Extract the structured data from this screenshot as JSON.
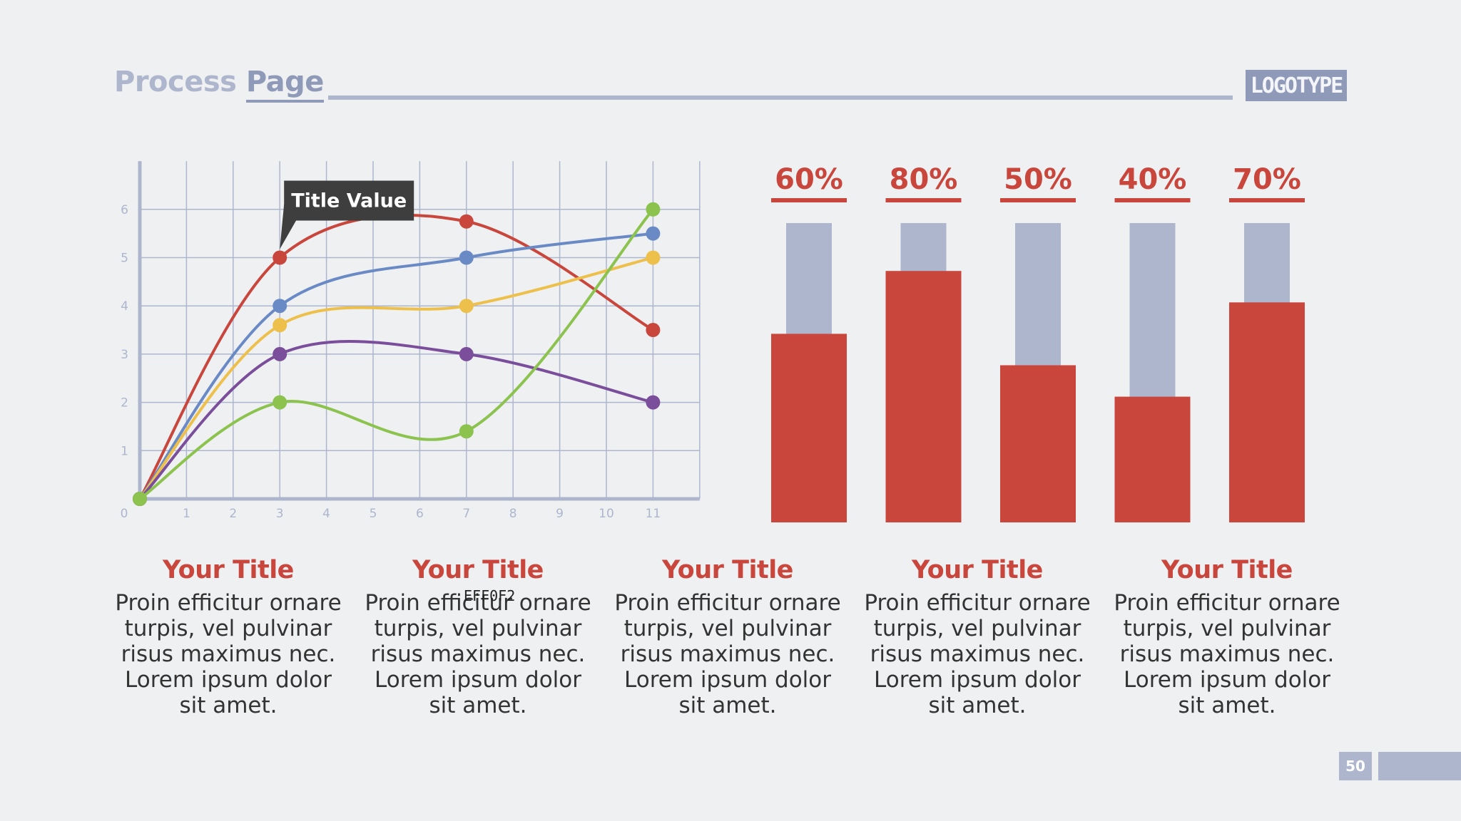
{
  "header": {
    "title_light": "Process",
    "title_strong": "Page",
    "logo": "LOGOTYPE"
  },
  "colors": {
    "accent": "#C9463D",
    "muted": "#AEB6CE",
    "background": "#EFF0F2",
    "grid": "#AEB6CE",
    "series": [
      "#C9463D",
      "#6A8AC6",
      "#EDC04C",
      "#7A4E9A",
      "#8CC24E"
    ]
  },
  "chart_data": [
    {
      "type": "line",
      "xlim": [
        0,
        12
      ],
      "ylim": [
        0,
        7
      ],
      "x_ticks": [
        0,
        1,
        2,
        3,
        4,
        5,
        6,
        7,
        8,
        9,
        10,
        11
      ],
      "y_ticks": [
        1,
        2,
        3,
        4,
        5,
        6
      ],
      "grid": true,
      "series": [
        {
          "color": "#C9463D",
          "x": [
            0,
            3,
            7,
            11
          ],
          "y": [
            0,
            5,
            5.75,
            3.5
          ]
        },
        {
          "color": "#6A8AC6",
          "x": [
            0,
            3,
            7,
            11
          ],
          "y": [
            0,
            4,
            5,
            5.5
          ]
        },
        {
          "color": "#EDC04C",
          "x": [
            0,
            3,
            7,
            11
          ],
          "y": [
            0,
            3.6,
            4,
            5
          ]
        },
        {
          "color": "#7A4E9A",
          "x": [
            0,
            3,
            7,
            11
          ],
          "y": [
            0,
            3,
            3,
            2
          ]
        },
        {
          "color": "#8CC24E",
          "x": [
            0,
            3,
            7,
            11
          ],
          "y": [
            0,
            2,
            1.4,
            6
          ]
        }
      ],
      "annotation": {
        "text": "Title Value",
        "x": 3,
        "y": 5
      }
    },
    {
      "type": "bar",
      "values": [
        60,
        80,
        50,
        40,
        70
      ],
      "labels": [
        "60%",
        "80%",
        "50%",
        "40%",
        "70%"
      ],
      "ylim": [
        0,
        100
      ]
    }
  ],
  "cards": [
    {
      "title": "Your Title",
      "text": "Proin efficitur ornare turpis, vel pulvinar risus maximus nec. Lorem ipsum dolor sit amet."
    },
    {
      "title": "Your Title",
      "text": "Proin efficitur ornare turpis, vel pulvinar risus maximus nec. Lorem ipsum dolor sit amet."
    },
    {
      "title": "Your Title",
      "text": "Proin efficitur ornare turpis, vel pulvinar risus maximus nec. Lorem ipsum dolor sit amet."
    },
    {
      "title": "Your Title",
      "text": "Proin efficitur ornare turpis, vel pulvinar risus maximus nec. Lorem ipsum dolor sit amet."
    },
    {
      "title": "Your Title",
      "text": "Proin efficitur ornare turpis, vel pulvinar risus maximus nec. Lorem ipsum dolor sit amet."
    }
  ],
  "stray_text": "EFF0F2",
  "page_number": "50"
}
